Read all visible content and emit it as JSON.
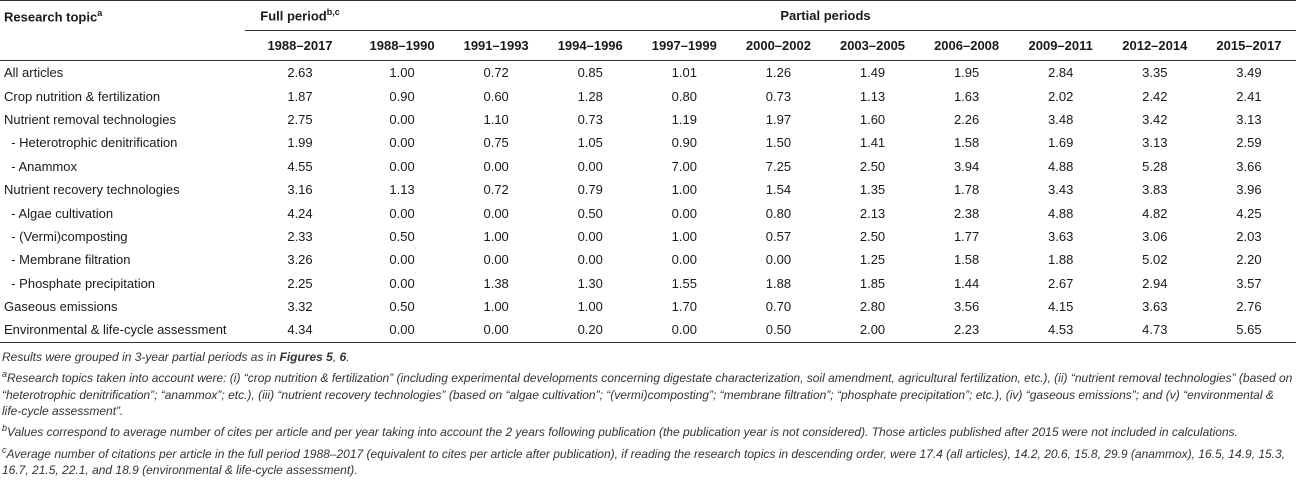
{
  "table": {
    "header": {
      "topic": "Research topic",
      "topic_sup": "a",
      "full": "Full period",
      "full_sup": "b,c",
      "partial": "Partial periods"
    },
    "columns": [
      "1988–2017",
      "1988–1990",
      "1991–1993",
      "1994–1996",
      "1997–1999",
      "2000–2002",
      "2003–2005",
      "2006–2008",
      "2009–2011",
      "2012–2014",
      "2015–2017"
    ],
    "rows": [
      [
        "All articles",
        "2.63",
        "1.00",
        "0.72",
        "0.85",
        "1.01",
        "1.26",
        "1.49",
        "1.95",
        "2.84",
        "3.35",
        "3.49"
      ],
      [
        "Crop nutrition & fertilization",
        "1.87",
        "0.90",
        "0.60",
        "1.28",
        "0.80",
        "0.73",
        "1.13",
        "1.63",
        "2.02",
        "2.42",
        "2.41"
      ],
      [
        "Nutrient removal technologies",
        "2.75",
        "0.00",
        "1.10",
        "0.73",
        "1.19",
        "1.97",
        "1.60",
        "2.26",
        "3.48",
        "3.42",
        "3.13"
      ],
      [
        "  - Heterotrophic denitrification",
        "1.99",
        "0.00",
        "0.75",
        "1.05",
        "0.90",
        "1.50",
        "1.41",
        "1.58",
        "1.69",
        "3.13",
        "2.59"
      ],
      [
        "  - Anammox",
        "4.55",
        "0.00",
        "0.00",
        "0.00",
        "7.00",
        "7.25",
        "2.50",
        "3.94",
        "4.88",
        "5.28",
        "3.66"
      ],
      [
        "Nutrient recovery technologies",
        "3.16",
        "1.13",
        "0.72",
        "0.79",
        "1.00",
        "1.54",
        "1.35",
        "1.78",
        "3.43",
        "3.83",
        "3.96"
      ],
      [
        "  - Algae cultivation",
        "4.24",
        "0.00",
        "0.00",
        "0.50",
        "0.00",
        "0.80",
        "2.13",
        "2.38",
        "4.88",
        "4.82",
        "4.25"
      ],
      [
        "  - (Vermi)composting",
        "2.33",
        "0.50",
        "1.00",
        "0.00",
        "1.00",
        "0.57",
        "2.50",
        "1.77",
        "3.63",
        "3.06",
        "2.03"
      ],
      [
        "  - Membrane filtration",
        "3.26",
        "0.00",
        "0.00",
        "0.00",
        "0.00",
        "0.00",
        "1.25",
        "1.58",
        "1.88",
        "5.02",
        "2.20"
      ],
      [
        "  - Phosphate precipitation",
        "2.25",
        "0.00",
        "1.38",
        "1.30",
        "1.55",
        "1.88",
        "1.85",
        "1.44",
        "2.67",
        "2.94",
        "3.57"
      ],
      [
        "Gaseous emissions",
        "3.32",
        "0.50",
        "1.00",
        "1.00",
        "1.70",
        "0.70",
        "2.80",
        "3.56",
        "4.15",
        "3.63",
        "2.76"
      ],
      [
        "Environmental & life-cycle assessment",
        "4.34",
        "0.00",
        "0.00",
        "0.20",
        "0.00",
        "0.50",
        "2.00",
        "2.23",
        "4.53",
        "4.73",
        "5.65"
      ]
    ]
  },
  "footnotes": [
    {
      "parts": [
        {
          "text": "Results were grouped in 3-year partial periods as in "
        },
        {
          "text": "Figures 5",
          "bold": true
        },
        {
          "text": ", "
        },
        {
          "text": "6",
          "bold": true
        },
        {
          "text": "."
        }
      ]
    },
    {
      "sup": "a",
      "parts": [
        {
          "text": "Research topics taken into account were: (i) “crop nutrition & fertilization” (including experimental developments concerning digestate characterization, soil amendment, agricultural fertilization, etc.), (ii) “nutrient removal technologies” (based on “heterotrophic denitrification”; “anammox”; etc.), (iii) “nutrient recovery technologies” (based on “algae cultivation”; “(vermi)composting”; “membrane filtration”; “phosphate precipitation”; etc.), (iv) “gaseous emissions”; and (v) “environmental & life-cycle assessment”."
        }
      ]
    },
    {
      "sup": "b",
      "parts": [
        {
          "text": "Values correspond to average number of cites per article and per year taking into account the 2 years following publication (the publication year is not considered). Those articles published after 2015 were not included in calculations."
        }
      ]
    },
    {
      "sup": "c",
      "parts": [
        {
          "text": "Average number of citations per article in the full period 1988–2017 (equivalent to cites per article after publication), if reading the research topics in descending order, were 17.4 (all articles), 14.2, 20.6, 15.8, 29.9 (anammox), 16.5, 14.9, 15.3, 16.7, 21.5, 22.1, and 18.9 (environmental & life-cycle assessment)."
        }
      ]
    }
  ]
}
